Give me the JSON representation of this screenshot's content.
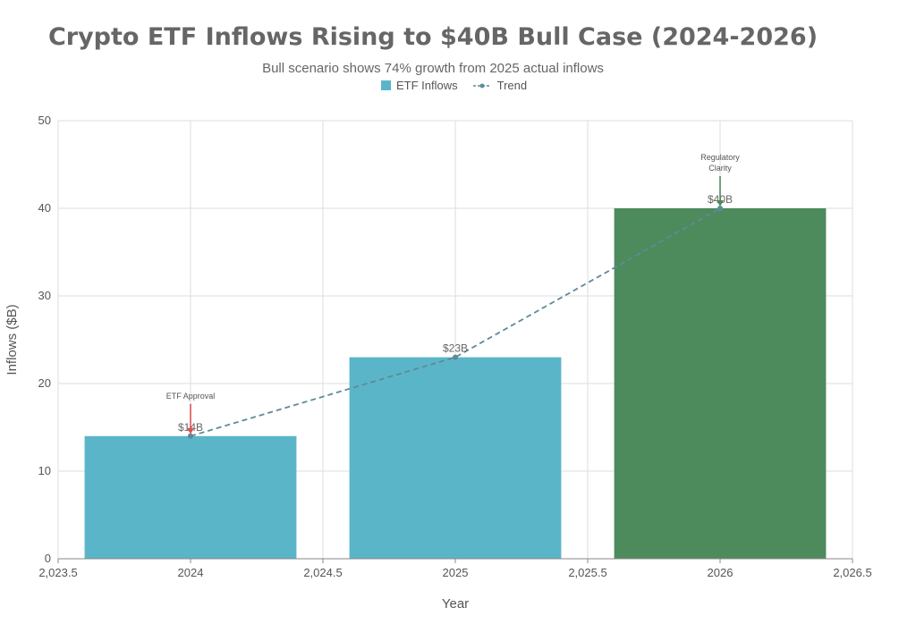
{
  "chart_data": {
    "type": "bar",
    "title": "Crypto ETF Inflows Rising to $40B Bull Case (2024-2026)",
    "subtitle": "Bull scenario shows 74% growth from 2025 actual inflows",
    "xlabel": "Year",
    "ylabel": "Inflows ($B)",
    "xlim": [
      2023.5,
      2026.5
    ],
    "ylim": [
      0,
      50
    ],
    "x_ticks": [
      "2,023.5",
      "2024",
      "2,024.5",
      "2025",
      "2,025.5",
      "2026",
      "2,026.5"
    ],
    "x_tick_values": [
      2023.5,
      2024,
      2024.5,
      2025,
      2025.5,
      2026,
      2026.5
    ],
    "y_ticks": [
      0,
      10,
      20,
      30,
      40,
      50
    ],
    "grid": true,
    "legend": {
      "placement": "top-center",
      "entries": [
        "ETF Inflows",
        "Trend"
      ]
    },
    "series": [
      {
        "name": "ETF Inflows",
        "x": [
          2024,
          2025,
          2026
        ],
        "values": [
          14,
          23,
          40
        ],
        "labels": [
          "$14B",
          "$23B",
          "$40B"
        ],
        "colors": [
          "#5bb5c9",
          "#5bb5c9",
          "#4d8a5c"
        ]
      },
      {
        "name": "Trend",
        "x": [
          2024,
          2025,
          2026
        ],
        "values": [
          14,
          23,
          40
        ],
        "color": "#5e8a9a",
        "style": "dashed"
      }
    ],
    "annotations": [
      {
        "x": 2024,
        "y": 14,
        "text": [
          "ETF Approval"
        ],
        "color": "#d9534f"
      },
      {
        "x": 2026,
        "y": 40,
        "text": [
          "Regulatory",
          "Clarity"
        ],
        "color": "#4d8a5c"
      }
    ]
  },
  "colors": {
    "bar": "#5bb5c9",
    "bar_highlight": "#4d8a5c",
    "trend": "#5e8a9a",
    "grid": "#dddddd",
    "axis": "#888888"
  }
}
